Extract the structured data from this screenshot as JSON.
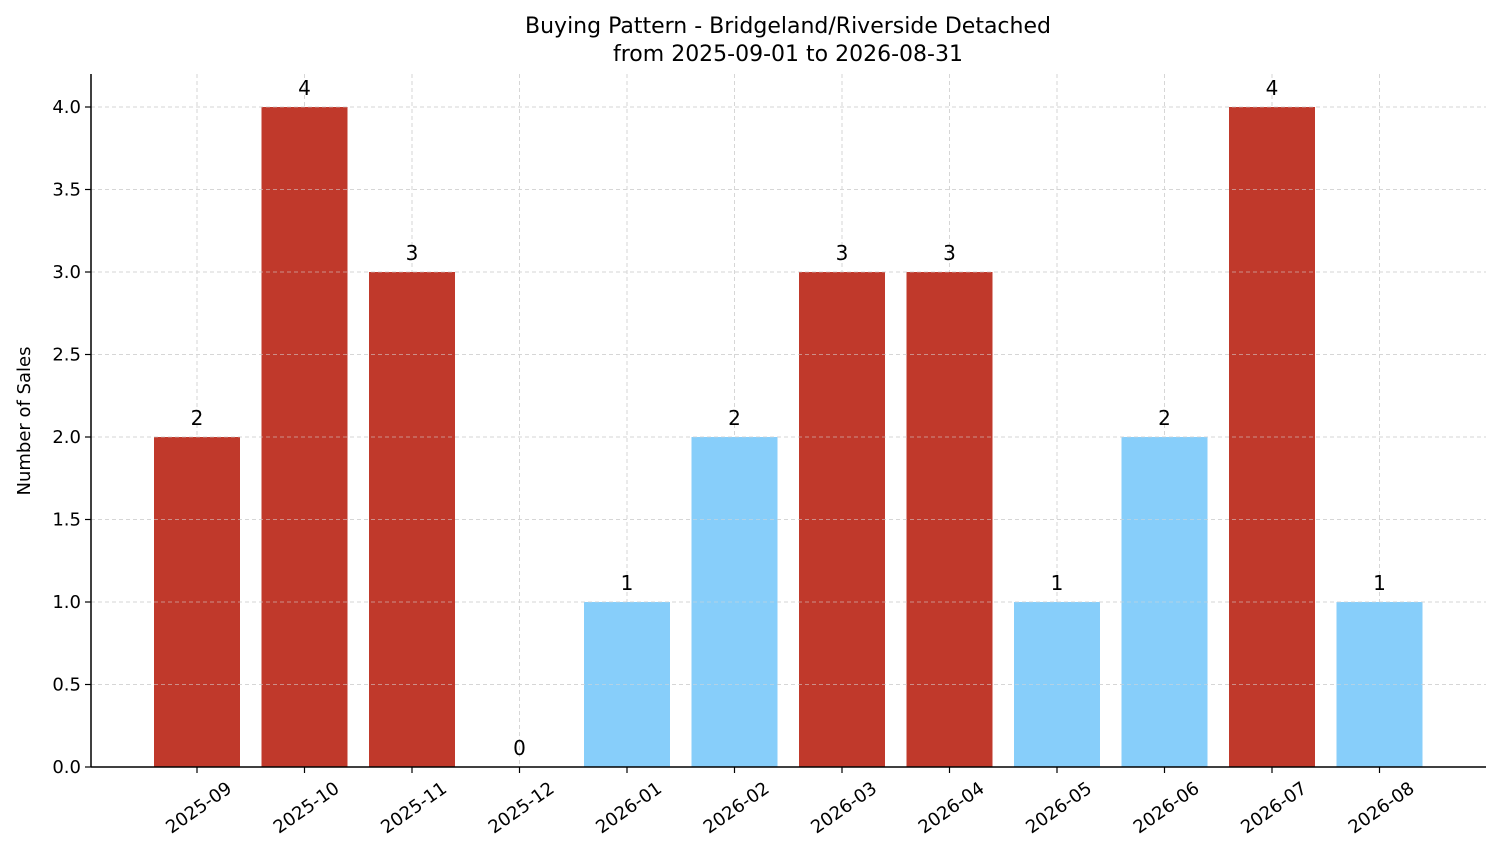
{
  "chart_data": {
    "type": "bar",
    "title": "Buying Pattern - Bridgeland/Riverside Detached",
    "subtitle": "from 2025-09-01 to 2026-08-31",
    "xlabel": "",
    "ylabel": "Number of Sales",
    "ylim": [
      0,
      4.2
    ],
    "yticks": [
      "0.0",
      "0.5",
      "1.0",
      "1.5",
      "2.0",
      "2.5",
      "3.0",
      "3.5",
      "4.0"
    ],
    "ytick_values": [
      0,
      0.5,
      1.0,
      1.5,
      2.0,
      2.5,
      3.0,
      3.5,
      4.0
    ],
    "grid": true,
    "categories": [
      "2025-09",
      "2025-10",
      "2025-11",
      "2025-12",
      "2026-01",
      "2026-02",
      "2026-03",
      "2026-04",
      "2026-05",
      "2026-06",
      "2026-07",
      "2026-08"
    ],
    "values": [
      2,
      4,
      3,
      0,
      1,
      2,
      3,
      3,
      1,
      2,
      4,
      1
    ],
    "bar_colors": [
      "#c0392b",
      "#c0392b",
      "#c0392b",
      "#c0392b",
      "#87cefa",
      "#87cefa",
      "#c0392b",
      "#c0392b",
      "#87cefa",
      "#87cefa",
      "#c0392b",
      "#87cefa"
    ]
  }
}
